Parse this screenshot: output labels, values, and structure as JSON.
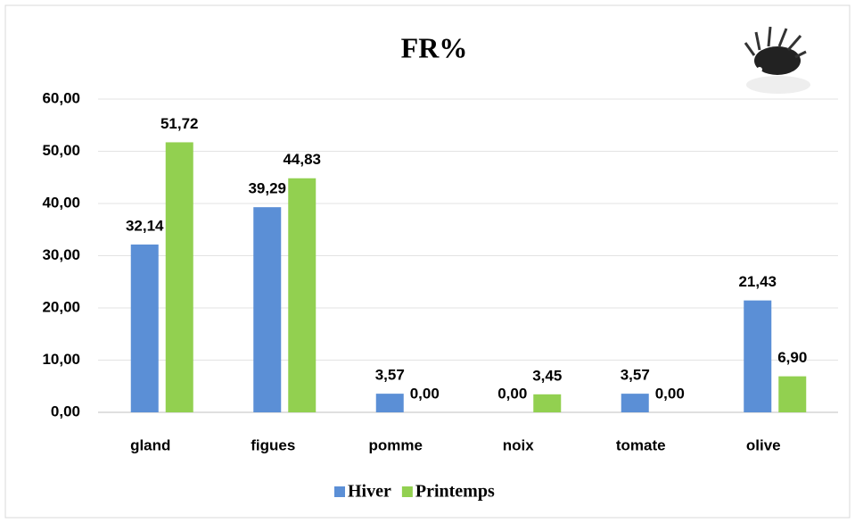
{
  "chart_data": {
    "type": "bar",
    "title": "FR%",
    "categories": [
      "gland",
      "figues",
      "pomme",
      "noix",
      "tomate",
      "olive"
    ],
    "series": [
      {
        "name": "Hiver",
        "color": "#5b8fd6",
        "values": [
          32.14,
          39.29,
          3.57,
          0,
          3.57,
          21.43
        ],
        "value_labels": [
          "32,14",
          "39,29",
          "3,57",
          "0,00",
          "3,57",
          "21,43"
        ]
      },
      {
        "name": "Printemps",
        "color": "#92d050",
        "values": [
          51.72,
          44.83,
          0,
          3.45,
          0,
          6.9
        ],
        "value_labels": [
          "51,72",
          "44,83",
          "0,00",
          "3,45",
          "0,00",
          "6,90"
        ]
      }
    ],
    "ylim": [
      0,
      60
    ],
    "yticks": [
      {
        "value": 0,
        "label": "0,00"
      },
      {
        "value": 10,
        "label": "10,00"
      },
      {
        "value": 20,
        "label": "20,00"
      },
      {
        "value": 30,
        "label": "30,00"
      },
      {
        "value": 40,
        "label": "40,00"
      },
      {
        "value": 50,
        "label": "50,00"
      },
      {
        "value": 60,
        "label": "60,00"
      }
    ],
    "grid": true,
    "legend": "bottom"
  }
}
